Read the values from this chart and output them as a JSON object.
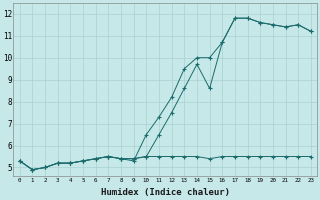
{
  "xlabel": "Humidex (Indice chaleur)",
  "ylabel": "",
  "background_color": "#c6e8e8",
  "grid_color": "#a8d0d0",
  "line_color": "#1a6b6b",
  "xlim": [
    -0.5,
    23.5
  ],
  "ylim": [
    4.6,
    12.5
  ],
  "xticks": [
    0,
    1,
    2,
    3,
    4,
    5,
    6,
    7,
    8,
    9,
    10,
    11,
    12,
    13,
    14,
    15,
    16,
    17,
    18,
    19,
    20,
    21,
    22,
    23
  ],
  "yticks": [
    5,
    6,
    7,
    8,
    9,
    10,
    11,
    12
  ],
  "series1_x": [
    0,
    1,
    2,
    3,
    4,
    5,
    6,
    7,
    8,
    9,
    10,
    11,
    12,
    13,
    14,
    15,
    16,
    17,
    18,
    19,
    20,
    21,
    22,
    23
  ],
  "series1_y": [
    5.3,
    4.9,
    5.0,
    5.2,
    5.2,
    5.3,
    5.4,
    5.5,
    5.4,
    5.4,
    5.5,
    5.5,
    5.5,
    5.5,
    5.5,
    5.4,
    5.5,
    5.5,
    5.5,
    5.5,
    5.5,
    5.5,
    5.5,
    5.5
  ],
  "series2_x": [
    0,
    1,
    2,
    3,
    4,
    5,
    6,
    7,
    8,
    9,
    10,
    11,
    12,
    13,
    14,
    15,
    16,
    17,
    18,
    19,
    20,
    21,
    22,
    23
  ],
  "series2_y": [
    5.3,
    4.9,
    5.0,
    5.2,
    5.2,
    5.3,
    5.4,
    5.5,
    5.4,
    5.4,
    5.5,
    6.5,
    7.5,
    8.6,
    9.7,
    8.6,
    10.7,
    11.8,
    11.8,
    11.6,
    11.5,
    11.4,
    11.5,
    11.2
  ],
  "series3_x": [
    0,
    1,
    2,
    3,
    4,
    5,
    6,
    7,
    8,
    9,
    10,
    11,
    12,
    13,
    14,
    15,
    16,
    17,
    18,
    19,
    20,
    21,
    22,
    23
  ],
  "series3_y": [
    5.3,
    4.9,
    5.0,
    5.2,
    5.2,
    5.3,
    5.4,
    5.5,
    5.4,
    5.3,
    6.5,
    7.3,
    8.2,
    9.5,
    10.0,
    10.0,
    10.7,
    11.8,
    11.8,
    11.6,
    11.5,
    11.4,
    11.5,
    11.2
  ]
}
